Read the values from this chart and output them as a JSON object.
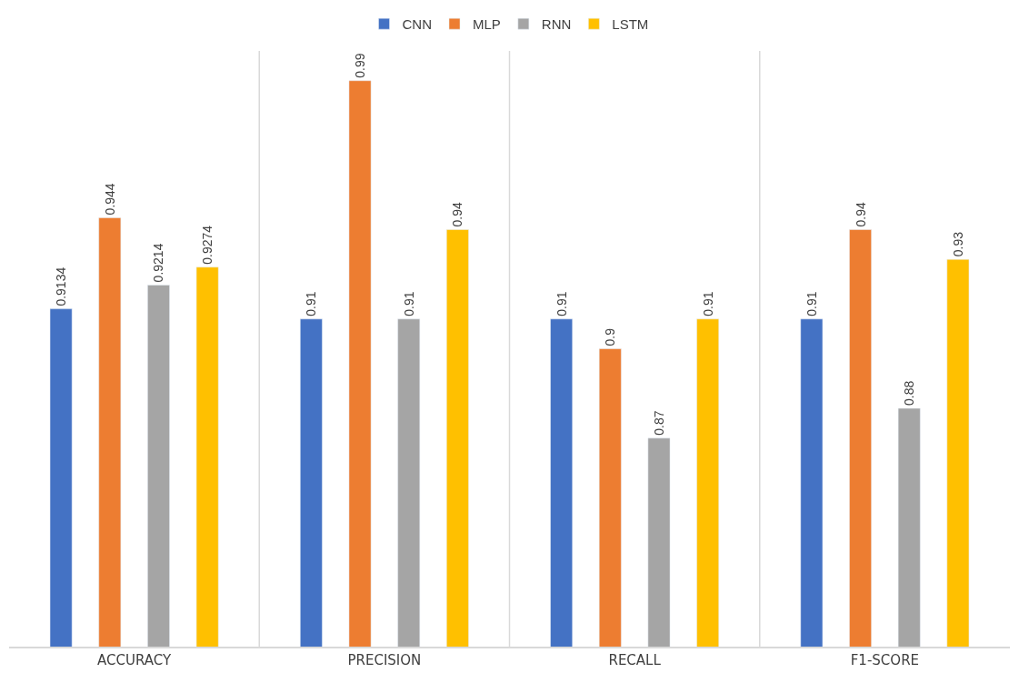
{
  "chart_data": {
    "type": "bar",
    "categories": [
      "ACCURACY",
      "PRECISION",
      "RECALL",
      "F1-SCORE"
    ],
    "series": [
      {
        "name": "CNN",
        "color": "#4472c4",
        "values": [
          0.9134,
          0.91,
          0.91,
          0.91
        ]
      },
      {
        "name": "MLP",
        "color": "#ed7d31",
        "values": [
          0.944,
          0.99,
          0.9,
          0.94
        ]
      },
      {
        "name": "RNN",
        "color": "#a5a5a5",
        "values": [
          0.9214,
          0.91,
          0.87,
          0.88
        ]
      },
      {
        "name": "LSTM",
        "color": "#ffc000",
        "values": [
          0.9274,
          0.94,
          0.91,
          0.93
        ]
      }
    ],
    "ylim": [
      0.8,
      1.0
    ],
    "data_labels": true,
    "grid": "x",
    "legend": "top",
    "tick_labels": "x"
  }
}
